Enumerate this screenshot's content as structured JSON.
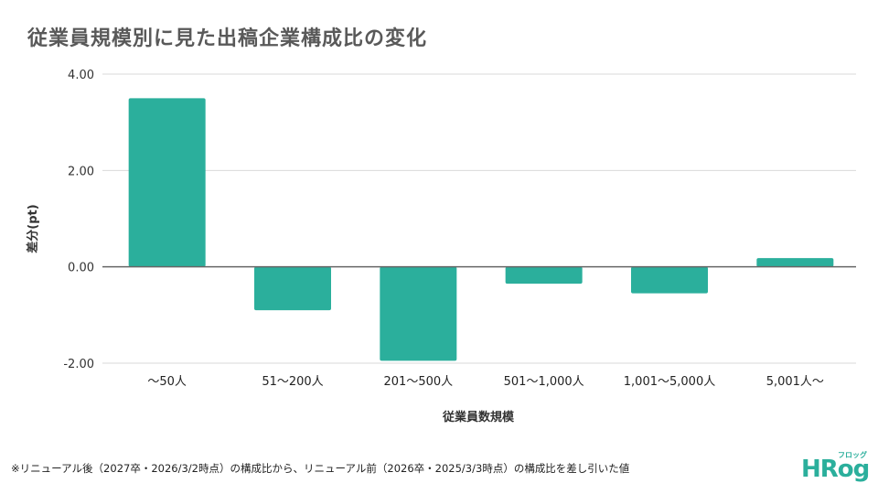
{
  "title": "従業員規模別に見た出稿企業構成比の変化",
  "footnote": "※リニューアル後（2027卒・2026/3/2時点）の構成比から、リニューアル前（2026卒・2025/3/3時点）の構成比を差し引いた値",
  "logo": {
    "main": "HRog",
    "sub": "フロッグ"
  },
  "colors": {
    "bar": "#2baf9c",
    "grid": "#d9d9d9",
    "zero_line": "#666666",
    "title": "#595959"
  },
  "chart_data": {
    "type": "bar",
    "title": "従業員規模別に見た出稿企業構成比の変化",
    "xlabel": "従業員数規模",
    "ylabel": "差分(pt)",
    "categories": [
      "〜50人",
      "51〜200人",
      "201〜500人",
      "501〜1,000人",
      "1,001〜5,000人",
      "5,001人〜"
    ],
    "values": [
      3.5,
      -0.9,
      -1.95,
      -0.35,
      -0.55,
      0.18
    ],
    "ylim": [
      -2,
      4
    ],
    "yticks": [
      "4.00",
      "2.00",
      "0.00",
      "-2.00"
    ],
    "ytick_values": [
      4,
      2,
      0,
      -2
    ],
    "grid": true,
    "legend": "none"
  }
}
